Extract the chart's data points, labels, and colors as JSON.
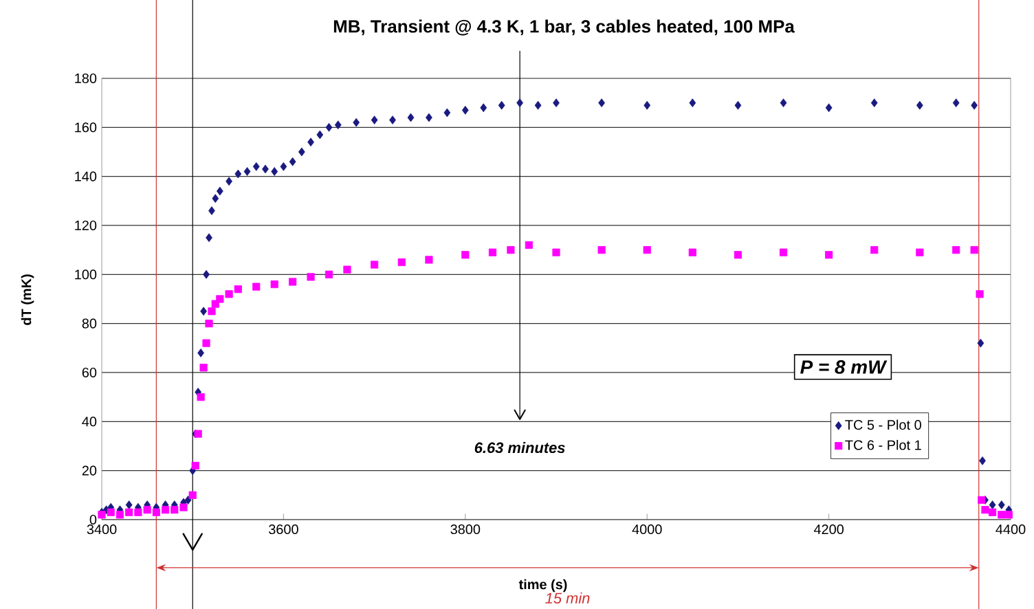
{
  "chart_data": {
    "type": "scatter",
    "title": "MB, Transient @ 4.3 K, 1 bar, 3 cables heated, 100 MPa",
    "xlabel": "time (s)",
    "ylabel": "dT (mK)",
    "xlim": [
      3400,
      4400
    ],
    "xticks": [
      3400,
      3600,
      3800,
      4000,
      4200,
      4400
    ],
    "ylim": [
      0,
      180
    ],
    "yticks": [
      0,
      20,
      40,
      60,
      80,
      100,
      120,
      140,
      160,
      180
    ],
    "grid": "y",
    "legend": "right",
    "ref_lines": [
      {
        "axis": "x",
        "value": 3460,
        "color": "#d03030"
      },
      {
        "axis": "x",
        "value": 4365,
        "color": "#d03030"
      },
      {
        "axis": "x",
        "value": 3500,
        "color": "#000000"
      },
      {
        "axis": "x",
        "value": 3860,
        "color": "#000000",
        "label": "6.63 minutes"
      }
    ],
    "annotations": [
      "P = 8 mW",
      "15 min"
    ],
    "series": [
      {
        "name": "TC 5 - Plot 0",
        "color": "#1a1a80",
        "marker": "diamond",
        "x": [
          3400,
          3405,
          3410,
          3420,
          3430,
          3440,
          3450,
          3460,
          3470,
          3480,
          3490,
          3495,
          3500,
          3503,
          3506,
          3509,
          3512,
          3515,
          3518,
          3521,
          3525,
          3530,
          3540,
          3550,
          3560,
          3570,
          3580,
          3590,
          3600,
          3610,
          3620,
          3630,
          3640,
          3650,
          3660,
          3680,
          3700,
          3720,
          3740,
          3760,
          3780,
          3800,
          3820,
          3840,
          3860,
          3880,
          3900,
          3950,
          4000,
          4050,
          4100,
          4150,
          4200,
          4250,
          4300,
          4340,
          4360,
          4367,
          4369,
          4372,
          4380,
          4390,
          4398
        ],
        "values": [
          3,
          4,
          5,
          4,
          6,
          5,
          6,
          5,
          6,
          6,
          7,
          8,
          20,
          35,
          52,
          68,
          85,
          100,
          115,
          126,
          131,
          134,
          138,
          141,
          142,
          144,
          143,
          142,
          144,
          146,
          150,
          154,
          157,
          160,
          161,
          162,
          163,
          163,
          164,
          164,
          166,
          167,
          168,
          169,
          170,
          169,
          170,
          170,
          169,
          170,
          169,
          170,
          168,
          170,
          169,
          170,
          169,
          72,
          24,
          8,
          6,
          6,
          4
        ]
      },
      {
        "name": "TC 6 - Plot 1",
        "color": "#ff00ff",
        "marker": "square",
        "x": [
          3400,
          3410,
          3420,
          3430,
          3440,
          3450,
          3460,
          3470,
          3480,
          3490,
          3500,
          3503,
          3506,
          3509,
          3512,
          3515,
          3518,
          3521,
          3525,
          3530,
          3540,
          3550,
          3570,
          3590,
          3610,
          3630,
          3650,
          3670,
          3700,
          3730,
          3760,
          3800,
          3830,
          3850,
          3870,
          3900,
          3950,
          4000,
          4050,
          4100,
          4150,
          4200,
          4250,
          4300,
          4340,
          4360,
          4366,
          4368,
          4372,
          4380,
          4390,
          4398
        ],
        "values": [
          2,
          3,
          2,
          3,
          3,
          4,
          3,
          4,
          4,
          5,
          10,
          22,
          35,
          50,
          62,
          72,
          80,
          85,
          88,
          90,
          92,
          94,
          95,
          96,
          97,
          99,
          100,
          102,
          104,
          105,
          106,
          108,
          109,
          110,
          112,
          109,
          110,
          110,
          109,
          108,
          109,
          108,
          110,
          109,
          110,
          110,
          92,
          8,
          4,
          3,
          2,
          2
        ]
      }
    ]
  }
}
